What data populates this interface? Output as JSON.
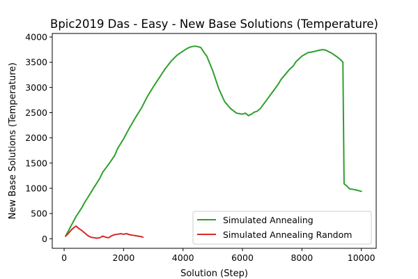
{
  "chart_data": {
    "type": "line",
    "title": "Bpic2019 Das - Easy - New Base Solutions (Temperature)",
    "xlabel": "Solution (Step)",
    "ylabel": "New Base Solutions (Temperature)",
    "xlim": [
      -400,
      10500
    ],
    "ylim": [
      -190,
      4070
    ],
    "xticks": [
      0,
      2000,
      4000,
      6000,
      8000,
      10000
    ],
    "yticks": [
      0,
      500,
      1000,
      1500,
      2000,
      2500,
      3000,
      3500,
      4000
    ],
    "grid": false,
    "legend_position": "lower-right",
    "series": [
      {
        "name": "Simulated Annealing",
        "color": "#2ca02c",
        "x": [
          50,
          200,
          300,
          400,
          500,
          600,
          700,
          800,
          1000,
          1200,
          1300,
          1500,
          1700,
          1800,
          2000,
          2200,
          2400,
          2600,
          2800,
          3000,
          3200,
          3400,
          3600,
          3800,
          4000,
          4100,
          4200,
          4300,
          4400,
          4500,
          4600,
          4700,
          4800,
          5000,
          5200,
          5400,
          5600,
          5800,
          5900,
          6000,
          6100,
          6200,
          6300,
          6400,
          6500,
          6600,
          6800,
          7000,
          7200,
          7300,
          7500,
          7600,
          7700,
          7800,
          8000,
          8200,
          8400,
          8600,
          8700,
          8800,
          9000,
          9200,
          9300,
          9380,
          9420,
          9500,
          9600,
          9800,
          10000
        ],
        "y": [
          50,
          220,
          330,
          440,
          530,
          620,
          730,
          820,
          1010,
          1200,
          1320,
          1480,
          1650,
          1790,
          1980,
          2200,
          2400,
          2590,
          2820,
          3010,
          3190,
          3370,
          3520,
          3640,
          3720,
          3760,
          3790,
          3810,
          3820,
          3810,
          3790,
          3700,
          3620,
          3330,
          2980,
          2720,
          2580,
          2490,
          2480,
          2470,
          2490,
          2440,
          2470,
          2510,
          2530,
          2580,
          2740,
          2900,
          3060,
          3160,
          3300,
          3370,
          3420,
          3510,
          3620,
          3690,
          3710,
          3740,
          3750,
          3740,
          3680,
          3600,
          3550,
          3500,
          1090,
          1050,
          990,
          970,
          940
        ]
      },
      {
        "name": "Simulated Annealing Random",
        "color": "#d62728",
        "x": [
          50,
          150,
          250,
          350,
          400,
          500,
          600,
          700,
          800,
          900,
          1000,
          1100,
          1200,
          1300,
          1400,
          1500,
          1600,
          1700,
          1800,
          1900,
          2000,
          2100,
          2200,
          2300,
          2400,
          2500,
          2600,
          2650
        ],
        "y": [
          50,
          110,
          180,
          230,
          250,
          200,
          160,
          110,
          60,
          30,
          20,
          10,
          20,
          50,
          30,
          20,
          60,
          80,
          90,
          100,
          90,
          100,
          80,
          70,
          60,
          50,
          40,
          30
        ]
      }
    ]
  }
}
